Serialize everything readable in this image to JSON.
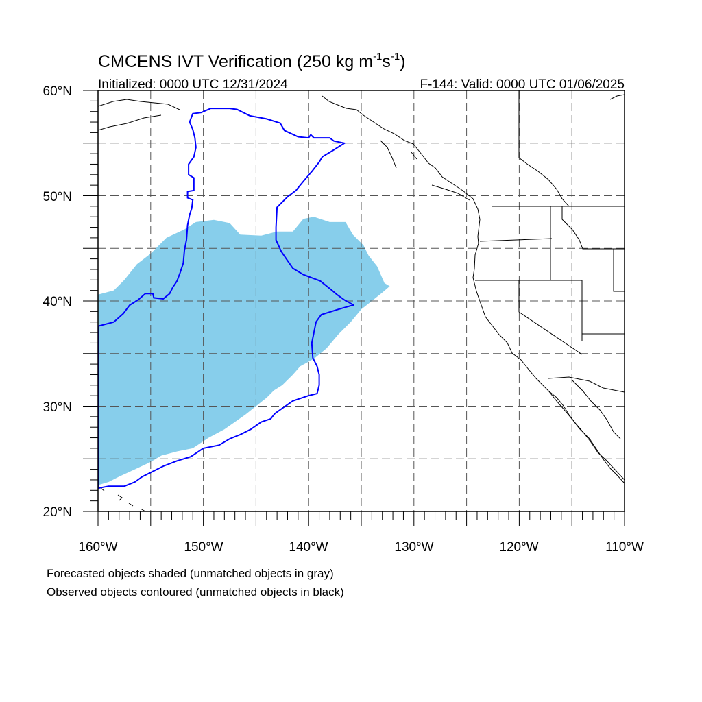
{
  "title": {
    "main": "CMCENS IVT Verification (250 kg m",
    "exp1": "-1",
    "s_char": "s",
    "exp2": "-1",
    "close": ")"
  },
  "initialized": "Initialized: 0000 UTC 12/31/2024",
  "valid": "F-144: Valid: 0000 UTC 01/06/2025",
  "captions": [
    "Forecasted objects shaded (unmatched objects in gray)",
    "Observed objects contoured (unmatched objects in black)"
  ],
  "map": {
    "lon_range": [
      -160,
      -110
    ],
    "lat_range": [
      20,
      60
    ],
    "lon_tick_labels": [
      "160°W",
      "150°W",
      "140°W",
      "130°W",
      "120°W",
      "110°W"
    ],
    "lat_tick_labels": [
      "20°N",
      "30°N",
      "40°N",
      "50°N",
      "60°N"
    ],
    "grid_lines": "dashed, every 5°",
    "colors": {
      "forecast_fill": "#87ceeb",
      "observed_contour": "#0000ff",
      "coastline": "#000000",
      "grid": "#555555"
    },
    "forecast_object": {
      "label": "Forecasted objects shaded",
      "polygon_lonlat": [
        [
          -160,
          22.5
        ],
        [
          -160,
          40.6
        ],
        [
          -158.5,
          41
        ],
        [
          -157.5,
          42
        ],
        [
          -156.3,
          43.5
        ],
        [
          -155,
          44.5
        ],
        [
          -153.5,
          46
        ],
        [
          -151.8,
          46.8
        ],
        [
          -150.7,
          47.5
        ],
        [
          -149,
          47.7
        ],
        [
          -147.5,
          47.4
        ],
        [
          -146.5,
          46.3
        ],
        [
          -144.5,
          46.2
        ],
        [
          -143,
          46.6
        ],
        [
          -141.5,
          46.6
        ],
        [
          -140.5,
          47.8
        ],
        [
          -139.5,
          48
        ],
        [
          -138,
          47.5
        ],
        [
          -136.5,
          47.5
        ],
        [
          -135.8,
          46.3
        ],
        [
          -134.8,
          45.3
        ],
        [
          -134.3,
          44.3
        ],
        [
          -133.5,
          43.3
        ],
        [
          -132.8,
          41.7
        ],
        [
          -132.3,
          41.4
        ],
        [
          -133,
          40.8
        ],
        [
          -134,
          40
        ],
        [
          -135,
          39.2
        ],
        [
          -136,
          38
        ],
        [
          -137.2,
          36.8
        ],
        [
          -138.3,
          35.5
        ],
        [
          -139.5,
          34.5
        ],
        [
          -140.8,
          33.8
        ],
        [
          -141.5,
          33
        ],
        [
          -142.5,
          32
        ],
        [
          -143.3,
          31.5
        ],
        [
          -144,
          30.8
        ],
        [
          -145,
          30
        ],
        [
          -146,
          29.2
        ],
        [
          -147,
          28.5
        ],
        [
          -148,
          27.8
        ],
        [
          -149.5,
          27
        ],
        [
          -151,
          26
        ],
        [
          -152.5,
          25.7
        ],
        [
          -154,
          25.3
        ],
        [
          -155,
          24.7
        ],
        [
          -156.5,
          24
        ],
        [
          -158,
          23.3
        ],
        [
          -159,
          22.8
        ]
      ]
    },
    "observed_object": {
      "label": "Observed objects contoured",
      "polygon_lonlat": [
        [
          -160,
          37.6
        ],
        [
          -158.5,
          38
        ],
        [
          -157.6,
          38.8
        ],
        [
          -157,
          39.6
        ],
        [
          -156.2,
          40.1
        ],
        [
          -155.5,
          40.7
        ],
        [
          -154.8,
          40.7
        ],
        [
          -154.7,
          40.3
        ],
        [
          -153.8,
          40.2
        ],
        [
          -153.2,
          40.7
        ],
        [
          -152.9,
          41.3
        ],
        [
          -152.5,
          41.9
        ],
        [
          -152.2,
          42.7
        ],
        [
          -151.9,
          43.6
        ],
        [
          -151.8,
          44.8
        ],
        [
          -151.6,
          45.8
        ],
        [
          -151.5,
          47.2
        ],
        [
          -151.3,
          48.2
        ],
        [
          -151.1,
          48.8
        ],
        [
          -151,
          49.6
        ],
        [
          -151.5,
          49.8
        ],
        [
          -151.5,
          50.4
        ],
        [
          -150.9,
          50.5
        ],
        [
          -150.9,
          51.7
        ],
        [
          -151.4,
          52
        ],
        [
          -151.4,
          53
        ],
        [
          -150.9,
          53.7
        ],
        [
          -150.7,
          54.6
        ],
        [
          -150.8,
          55.5
        ],
        [
          -151,
          56.3
        ],
        [
          -151.3,
          57
        ],
        [
          -151,
          57.8
        ],
        [
          -150.2,
          57.9
        ],
        [
          -149.3,
          58.3
        ],
        [
          -147.5,
          58.3
        ],
        [
          -146.8,
          58.2
        ],
        [
          -145.6,
          57.6
        ],
        [
          -144,
          57.3
        ],
        [
          -142.7,
          56.9
        ],
        [
          -142.3,
          56.2
        ],
        [
          -141,
          55.6
        ],
        [
          -140,
          55.5
        ],
        [
          -139.8,
          55.8
        ],
        [
          -139.5,
          55.5
        ],
        [
          -138,
          55.5
        ],
        [
          -137.6,
          55.2
        ],
        [
          -136.6,
          55
        ],
        [
          -137.7,
          54.3
        ],
        [
          -138.7,
          53.7
        ],
        [
          -139,
          53.2
        ],
        [
          -139.7,
          52.3
        ],
        [
          -140.3,
          51.6
        ],
        [
          -140.8,
          51
        ],
        [
          -141.2,
          50.5
        ],
        [
          -142,
          49.9
        ],
        [
          -142.6,
          49.3
        ],
        [
          -143,
          48.9
        ],
        [
          -143.1,
          47
        ],
        [
          -143.1,
          45.8
        ],
        [
          -142.6,
          44.7
        ],
        [
          -141.5,
          43.1
        ],
        [
          -140.5,
          42.5
        ],
        [
          -138.9,
          41.9
        ],
        [
          -137.9,
          41.1
        ],
        [
          -137.3,
          40.6
        ],
        [
          -136.6,
          40.1
        ],
        [
          -135.7,
          39.6
        ],
        [
          -135.8,
          39.6
        ],
        [
          -137.2,
          39.2
        ],
        [
          -138.8,
          38.7
        ],
        [
          -139.3,
          38
        ],
        [
          -139.5,
          37
        ],
        [
          -139.7,
          36
        ],
        [
          -139.6,
          34.6
        ],
        [
          -139.2,
          33.8
        ],
        [
          -139,
          33
        ],
        [
          -139,
          32
        ],
        [
          -139.2,
          31.2
        ],
        [
          -140,
          31
        ],
        [
          -141.5,
          30.5
        ],
        [
          -142.5,
          29.8
        ],
        [
          -143.2,
          29.3
        ],
        [
          -143.6,
          28.8
        ],
        [
          -144.5,
          28.5
        ],
        [
          -145.5,
          27.8
        ],
        [
          -146.5,
          27.3
        ],
        [
          -147.5,
          26.9
        ],
        [
          -148.5,
          26.3
        ],
        [
          -150,
          26
        ],
        [
          -151.2,
          25.2
        ],
        [
          -152.5,
          24.8
        ],
        [
          -153.8,
          24.3
        ],
        [
          -154.8,
          23.8
        ],
        [
          -155.8,
          23.3
        ],
        [
          -156.5,
          22.8
        ],
        [
          -157.5,
          22.4
        ],
        [
          -159,
          22.4
        ],
        [
          -160,
          22.2
        ]
      ]
    }
  }
}
